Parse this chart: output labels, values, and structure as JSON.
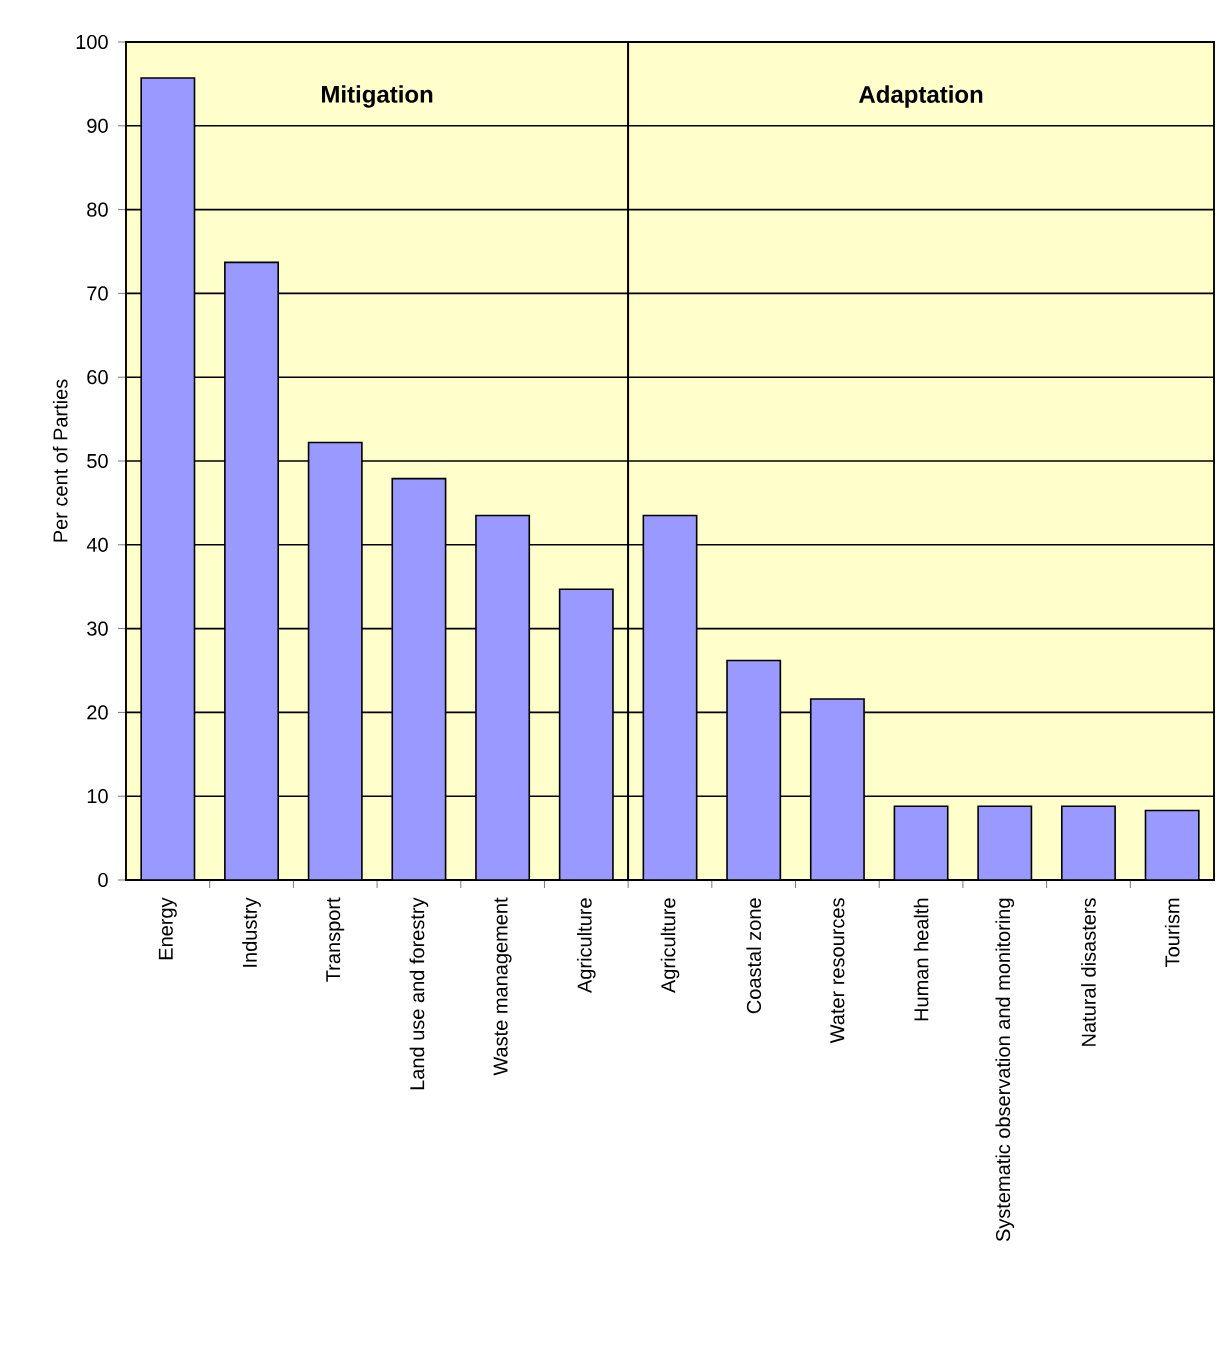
{
  "chart_data": {
    "type": "bar",
    "ylabel": "Per cent of Parties",
    "categories": [
      "Energy",
      "Industry",
      "Transport",
      "Land use and forestry",
      "Waste management",
      "Agriculture",
      "Agriculture",
      "Coastal zone",
      "Water resources",
      "Human health",
      "Systematic observation and monitoring",
      "Natural disasters",
      "Tourism"
    ],
    "values": [
      95.7,
      73.7,
      52.2,
      47.9,
      43.5,
      34.7,
      43.5,
      26.2,
      21.6,
      8.8,
      8.8,
      8.8,
      8.3
    ],
    "color": "#9999ff",
    "ylim": [
      0,
      100
    ],
    "yticks": [
      0,
      10,
      20,
      30,
      40,
      50,
      60,
      70,
      80,
      90,
      100
    ],
    "grid": "y",
    "bands": [
      {
        "axis": "x",
        "from": "Energy",
        "to": "Agriculture",
        "label": "Mitigation",
        "color": "#ffffcc"
      },
      {
        "axis": "x",
        "from": "Agriculture",
        "to": "Tourism",
        "label": "Adaptation",
        "color": "#ffffcc"
      }
    ]
  }
}
